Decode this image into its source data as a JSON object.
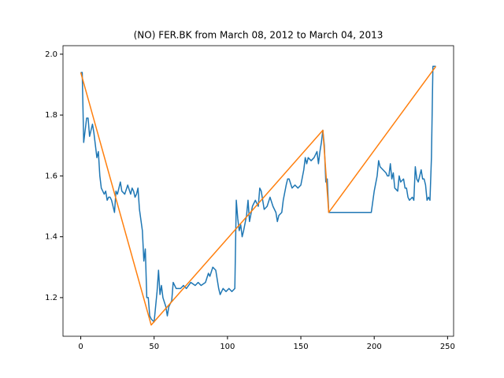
{
  "chart_data": {
    "type": "line",
    "title": "(NO) FER.BK from March 08, 2012 to March 04, 2013",
    "xlim": [
      -12.1,
      254.1
    ],
    "ylim": [
      1.073,
      2.028
    ],
    "xticks": [
      0,
      50,
      100,
      150,
      200,
      250
    ],
    "yticks": [
      {
        "value": 1.2,
        "label": "1.2"
      },
      {
        "value": 1.4,
        "label": "1.4"
      },
      {
        "value": 1.6,
        "label": "1.6"
      },
      {
        "value": 1.8,
        "label": "1.8"
      },
      {
        "value": 2.0,
        "label": "2.0"
      }
    ],
    "series": [
      {
        "color": "#1f77b4",
        "x": [
          0,
          1,
          2,
          3,
          4,
          5,
          6,
          7,
          8,
          9,
          10,
          11,
          12,
          13,
          14,
          15,
          16,
          17,
          18,
          19,
          20,
          21,
          22,
          23,
          24,
          25,
          26,
          27,
          28,
          30,
          32,
          34,
          35,
          36,
          37,
          38,
          39,
          40,
          42,
          43,
          44,
          45,
          46,
          47,
          48,
          50,
          52,
          53,
          54,
          55,
          56,
          58,
          59,
          60,
          62,
          63,
          65,
          68,
          70,
          72,
          75,
          78,
          80,
          82,
          85,
          87,
          88,
          90,
          92,
          94,
          95,
          97,
          99,
          101,
          103,
          105,
          106,
          107,
          108,
          109,
          110,
          111,
          113,
          114,
          115,
          117,
          119,
          121,
          122,
          123,
          125,
          127,
          129,
          131,
          133,
          134,
          135,
          137,
          138,
          140,
          141,
          142,
          144,
          146,
          148,
          150,
          152,
          153,
          154,
          155,
          157,
          159,
          161,
          162,
          163,
          164,
          165,
          166,
          167,
          168,
          169,
          175,
          180,
          190,
          198,
          200,
          202,
          203,
          204,
          206,
          208,
          209,
          210,
          211,
          212,
          213,
          214,
          216,
          217,
          218,
          220,
          221,
          222,
          223,
          224,
          226,
          227,
          228,
          229,
          230,
          232,
          233,
          234,
          235,
          236,
          237,
          238,
          239,
          240,
          242
        ],
        "values": [
          1.94,
          1.94,
          1.71,
          1.75,
          1.79,
          1.79,
          1.73,
          1.75,
          1.77,
          1.74,
          1.7,
          1.66,
          1.68,
          1.6,
          1.56,
          1.55,
          1.54,
          1.55,
          1.52,
          1.53,
          1.53,
          1.52,
          1.5,
          1.48,
          1.55,
          1.54,
          1.56,
          1.58,
          1.55,
          1.54,
          1.57,
          1.54,
          1.56,
          1.55,
          1.53,
          1.54,
          1.56,
          1.49,
          1.42,
          1.32,
          1.36,
          1.2,
          1.2,
          1.14,
          1.13,
          1.12,
          1.22,
          1.29,
          1.21,
          1.24,
          1.2,
          1.17,
          1.14,
          1.17,
          1.19,
          1.25,
          1.23,
          1.23,
          1.24,
          1.23,
          1.25,
          1.24,
          1.25,
          1.24,
          1.25,
          1.28,
          1.27,
          1.3,
          1.29,
          1.23,
          1.21,
          1.23,
          1.22,
          1.23,
          1.22,
          1.23,
          1.52,
          1.46,
          1.42,
          1.44,
          1.4,
          1.42,
          1.47,
          1.52,
          1.45,
          1.5,
          1.52,
          1.5,
          1.56,
          1.55,
          1.49,
          1.5,
          1.53,
          1.5,
          1.48,
          1.45,
          1.47,
          1.48,
          1.52,
          1.57,
          1.59,
          1.59,
          1.56,
          1.57,
          1.56,
          1.57,
          1.62,
          1.66,
          1.64,
          1.66,
          1.65,
          1.66,
          1.68,
          1.64,
          1.68,
          1.71,
          1.75,
          1.7,
          1.58,
          1.59,
          1.48,
          1.48,
          1.48,
          1.48,
          1.48,
          1.55,
          1.6,
          1.65,
          1.63,
          1.62,
          1.61,
          1.6,
          1.6,
          1.64,
          1.59,
          1.61,
          1.56,
          1.55,
          1.6,
          1.58,
          1.59,
          1.56,
          1.56,
          1.53,
          1.52,
          1.53,
          1.52,
          1.63,
          1.59,
          1.58,
          1.62,
          1.59,
          1.59,
          1.57,
          1.52,
          1.53,
          1.52,
          1.66,
          1.96,
          1.96
        ]
      },
      {
        "color": "#ff7f0e",
        "x": [
          0,
          48,
          165,
          169,
          242
        ],
        "values": [
          1.94,
          1.11,
          1.75,
          1.48,
          1.96
        ]
      }
    ]
  }
}
